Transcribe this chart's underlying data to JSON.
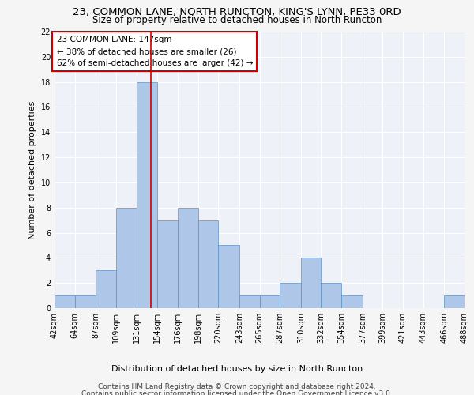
{
  "title1": "23, COMMON LANE, NORTH RUNCTON, KING'S LYNN, PE33 0RD",
  "title2": "Size of property relative to detached houses in North Runcton",
  "xlabel": "Distribution of detached houses by size in North Runcton",
  "ylabel": "Number of detached properties",
  "bin_edges": [
    42,
    64,
    87,
    109,
    131,
    154,
    176,
    198,
    220,
    243,
    265,
    287,
    310,
    332,
    354,
    377,
    399,
    421,
    443,
    466,
    488
  ],
  "bar_heights": [
    1,
    1,
    3,
    8,
    18,
    7,
    8,
    7,
    5,
    1,
    1,
    2,
    4,
    2,
    1,
    0,
    0,
    0,
    0,
    1
  ],
  "bar_color": "#aec6e8",
  "bar_edge_color": "#5a8fc2",
  "vline_x": 147,
  "vline_color": "#cc0000",
  "annotation_box_color": "#cc0000",
  "annotation_text_line1": "23 COMMON LANE: 147sqm",
  "annotation_text_line2": "← 38% of detached houses are smaller (26)",
  "annotation_text_line3": "62% of semi-detached houses are larger (42) →",
  "ylim": [
    0,
    22
  ],
  "yticks": [
    0,
    2,
    4,
    6,
    8,
    10,
    12,
    14,
    16,
    18,
    20,
    22
  ],
  "footer_line1": "Contains HM Land Registry data © Crown copyright and database right 2024.",
  "footer_line2": "Contains public sector information licensed under the Open Government Licence v3.0.",
  "bg_color": "#eef2f8",
  "grid_color": "#ffffff",
  "title1_fontsize": 9.5,
  "title2_fontsize": 8.5,
  "axis_label_fontsize": 8,
  "tick_fontsize": 7,
  "annot_fontsize": 7.5,
  "footer_fontsize": 6.5
}
